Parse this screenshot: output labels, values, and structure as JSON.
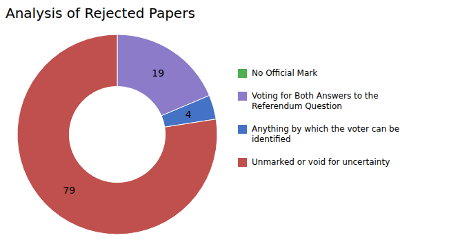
{
  "chart_data": {
    "type": "donut",
    "title": "Analysis of Rejected Papers",
    "categories": [
      "No Official Mark",
      "Voting for Both Answers to the\nReferendum Question",
      "Anything by which the voter can be\nidentified",
      "Unmarked or void for uncertainty"
    ],
    "values": [
      0,
      19,
      4,
      79
    ],
    "value_labels": [
      null,
      "19",
      "4",
      "79"
    ],
    "colors": [
      "#4CAF50",
      "#8B7BC8",
      "#4472C4",
      "#C0504D"
    ],
    "data_labels": true,
    "legend": "right"
  }
}
